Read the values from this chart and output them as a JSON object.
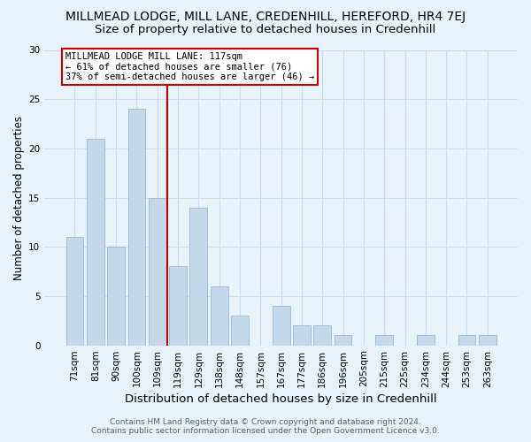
{
  "title": "MILLMEAD LODGE, MILL LANE, CREDENHILL, HEREFORD, HR4 7EJ",
  "subtitle": "Size of property relative to detached houses in Credenhill",
  "xlabel": "Distribution of detached houses by size in Credenhill",
  "ylabel": "Number of detached properties",
  "categories": [
    "71sqm",
    "81sqm",
    "90sqm",
    "100sqm",
    "109sqm",
    "119sqm",
    "129sqm",
    "138sqm",
    "148sqm",
    "157sqm",
    "167sqm",
    "177sqm",
    "186sqm",
    "196sqm",
    "205sqm",
    "215sqm",
    "225sqm",
    "234sqm",
    "244sqm",
    "253sqm",
    "263sqm"
  ],
  "values": [
    11,
    21,
    10,
    24,
    15,
    8,
    14,
    6,
    3,
    0,
    4,
    2,
    2,
    1,
    0,
    1,
    0,
    1,
    0,
    1,
    1
  ],
  "bar_color": "#c5d8ea",
  "bar_edge_color": "#9ab8d0",
  "vline_color": "#bb0000",
  "annotation_lines": [
    "MILLMEAD LODGE MILL LANE: 117sqm",
    "← 61% of detached houses are smaller (76)",
    "37% of semi-detached houses are larger (46) →"
  ],
  "annotation_box_color": "white",
  "annotation_box_edge": "#cc0000",
  "ylim": [
    0,
    30
  ],
  "yticks": [
    0,
    5,
    10,
    15,
    20,
    25,
    30
  ],
  "grid_color": "#c8dcea",
  "footer1": "Contains HM Land Registry data © Crown copyright and database right 2024.",
  "footer2": "Contains public sector information licensed under the Open Government Licence v3.0.",
  "title_fontsize": 10,
  "subtitle_fontsize": 9.5,
  "xlabel_fontsize": 9.5,
  "ylabel_fontsize": 8.5,
  "tick_fontsize": 7.5,
  "annotation_fontsize": 7.5,
  "footer_fontsize": 6.5,
  "bg_color": "#e8f2f9"
}
